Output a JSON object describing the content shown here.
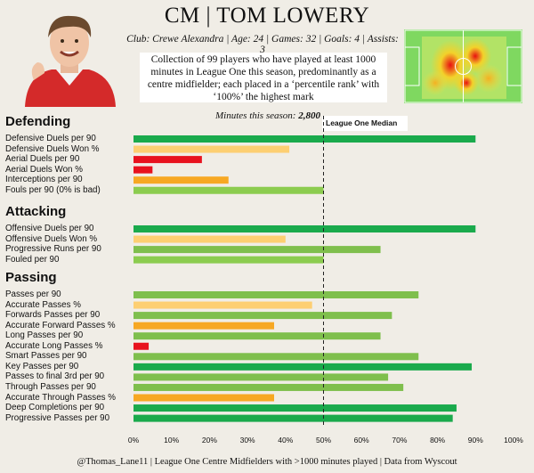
{
  "header": {
    "title": "CM | TOM LOWERY",
    "subtitle": "Club: Crewe Alexandra | Age: 24 | Games: 32 | Goals: 4 | Assists: 3",
    "description": "Collection of 99 players who have played at least 1000 minutes in League One this season, predominantly as a centre midfielder; each placed in a ‘percentile rank’ with ‘100%’ the highest mark",
    "minutes_label": "Minutes this season:",
    "minutes_value": "2,800",
    "median_label": "League One Median"
  },
  "footer": "@Thomas_Lane11 | League One Centre Midfielders with >1000 minutes played | Data from Wyscout",
  "colors": {
    "dark_green": "#1aaa4c",
    "light_green": "#7fbf4d",
    "lime": "#8ccc4f",
    "pale_orange": "#fdcf72",
    "orange": "#f7a823",
    "red": "#e8121e",
    "background": "#f0ede6"
  },
  "chart_data": {
    "type": "bar",
    "orientation": "horizontal",
    "xlim": [
      0,
      100
    ],
    "x_ticks": [
      "0%",
      "10%",
      "20%",
      "30%",
      "40%",
      "50%",
      "60%",
      "70%",
      "80%",
      "90%",
      "100%"
    ],
    "median": 50,
    "sections": [
      {
        "name": "Defending",
        "metrics": [
          {
            "label": "Defensive Duels per 90",
            "value": 90,
            "color": "#1aaa4c"
          },
          {
            "label": "Defensive Duels Won %",
            "value": 41,
            "color": "#fdcf72"
          },
          {
            "label": "Aerial Duels per 90",
            "value": 18,
            "color": "#e8121e"
          },
          {
            "label": "Aerial Duels Won %",
            "value": 5,
            "color": "#e8121e"
          },
          {
            "label": "Interceptions per 90",
            "value": 25,
            "color": "#f7a823"
          },
          {
            "label": "Fouls per 90 (0% is bad)",
            "value": 50,
            "color": "#8ccc4f"
          }
        ]
      },
      {
        "name": "Attacking",
        "metrics": [
          {
            "label": "Offensive Duels per 90",
            "value": 90,
            "color": "#1aaa4c"
          },
          {
            "label": "Offensive Duels Won %",
            "value": 40,
            "color": "#fdcf72"
          },
          {
            "label": "Progressive Runs per 90",
            "value": 65,
            "color": "#7fbf4d"
          },
          {
            "label": "Fouled per 90",
            "value": 50,
            "color": "#8ccc4f"
          }
        ]
      },
      {
        "name": "Passing",
        "metrics": [
          {
            "label": "Passes per 90",
            "value": 75,
            "color": "#7fbf4d"
          },
          {
            "label": "Accurate Passes %",
            "value": 47,
            "color": "#fdcf72"
          },
          {
            "label": "Forwards Passes per 90",
            "value": 68,
            "color": "#7fbf4d"
          },
          {
            "label": "Accurate Forward Passes %",
            "value": 37,
            "color": "#f7a823"
          },
          {
            "label": "Long Passes per 90",
            "value": 65,
            "color": "#7fbf4d"
          },
          {
            "label": "Accurate Long Passes %",
            "value": 4,
            "color": "#e8121e"
          },
          {
            "label": "Smart Passes per 90",
            "value": 75,
            "color": "#7fbf4d"
          },
          {
            "label": "Key Passes per 90",
            "value": 89,
            "color": "#1aaa4c"
          },
          {
            "label": "Passes to final 3rd per 90",
            "value": 67,
            "color": "#7fbf4d"
          },
          {
            "label": "Through Passes per 90",
            "value": 71,
            "color": "#7fbf4d"
          },
          {
            "label": "Accurate Through Passes %",
            "value": 37,
            "color": "#f7a823"
          },
          {
            "label": "Deep Completions per 90",
            "value": 85,
            "color": "#1aaa4c"
          },
          {
            "label": "Progressive Passes per 90",
            "value": 84,
            "color": "#1aaa4c"
          }
        ]
      }
    ]
  }
}
